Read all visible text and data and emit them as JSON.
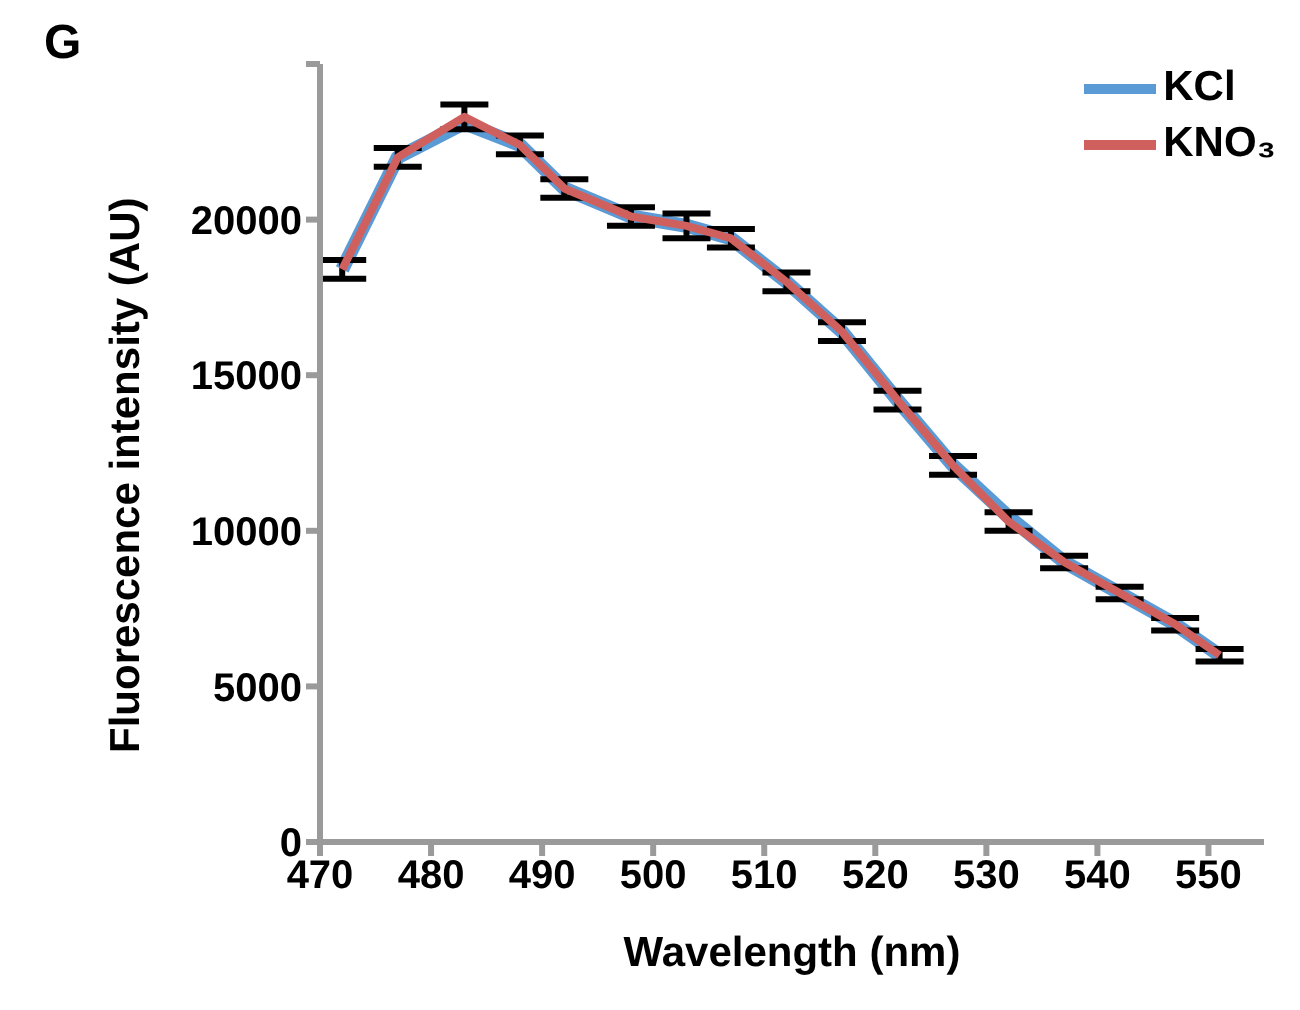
{
  "chart_data": {
    "type": "line",
    "annotations": [
      "G"
    ],
    "xlabel": "Wavelength (nm)",
    "ylabel": "Fluorescence intensity (AU)",
    "x": [
      472,
      477,
      483,
      488,
      492,
      498,
      503,
      507,
      512,
      517,
      522,
      527,
      532,
      537,
      542,
      547,
      551
    ],
    "series": [
      {
        "name": "KCl",
        "color": "#5b9bd5",
        "values": [
          18400,
          22000,
          23100,
          22400,
          21000,
          20100,
          19800,
          19400,
          18000,
          16400,
          14200,
          12100,
          10450,
          9000,
          8000,
          7000,
          6000
        ]
      },
      {
        "name": "KNO₃",
        "color": "#d0605e",
        "values": [
          18400,
          22000,
          23300,
          22400,
          21000,
          20100,
          19800,
          19400,
          18000,
          16400,
          14200,
          12100,
          10300,
          9000,
          8000,
          7000,
          6000
        ],
        "errors": [
          300,
          300,
          400,
          300,
          300,
          300,
          400,
          300,
          300,
          300,
          300,
          300,
          300,
          200,
          200,
          200,
          200
        ]
      }
    ],
    "xlim": [
      470,
      555
    ],
    "xticks": [
      470,
      480,
      490,
      500,
      510,
      520,
      530,
      540,
      550
    ],
    "ylim": [
      0,
      25000
    ],
    "yticks": [
      0,
      5000,
      10000,
      15000,
      20000,
      {
        "value": 25000,
        "label": null
      }
    ],
    "grid": false,
    "legend": "top right",
    "marker": "none",
    "line_style": "solid"
  }
}
